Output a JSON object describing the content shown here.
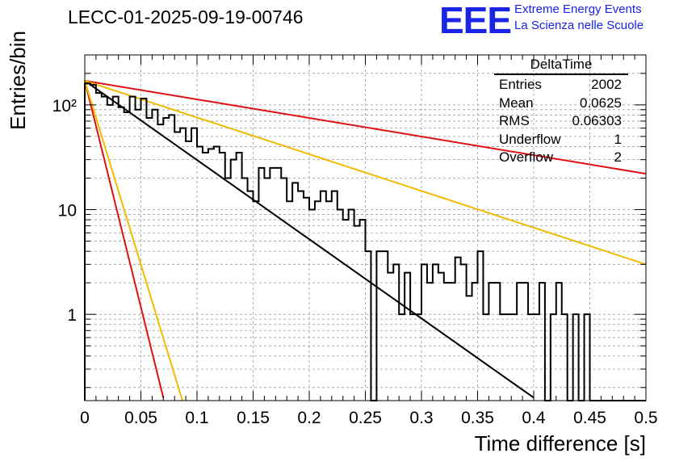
{
  "title": "LECC-01-2025-09-19-00746",
  "logo": {
    "mark": "EEE",
    "line1": "Extreme Energy Events",
    "line2": "La Scienza nelle Scuole",
    "color": "#1a24e6"
  },
  "stats": {
    "name": "DeltaTime",
    "rows": [
      {
        "label": "Entries",
        "value": "2002"
      },
      {
        "label": "Mean",
        "value": "0.0625"
      },
      {
        "label": "RMS",
        "value": "0.06303"
      },
      {
        "label": "Underflow",
        "value": "1"
      },
      {
        "label": "Overflow",
        "value": "2"
      }
    ]
  },
  "chart_data": {
    "type": "line",
    "title": "LECC-01-2025-09-19-00746",
    "xlabel": "Time difference [s]",
    "ylabel": "Entries/bin",
    "xlim": [
      0,
      0.5
    ],
    "ylim": [
      0.15,
      300
    ],
    "log_y": true,
    "grid": true,
    "x_ticks": [
      "0",
      "0.05",
      "0.1",
      "0.15",
      "0.2",
      "0.25",
      "0.3",
      "0.35",
      "0.4",
      "0.45",
      "0.5"
    ],
    "y_ticks": [
      {
        "value": 1,
        "label": "1"
      },
      {
        "value": 10,
        "label": "10"
      },
      {
        "value": 100,
        "label": "10²"
      }
    ],
    "histogram": {
      "name": "DeltaTime",
      "bin_width": 0.005,
      "color": "#000000",
      "counts": [
        160,
        155,
        130,
        120,
        100,
        120,
        95,
        85,
        120,
        90,
        115,
        75,
        90,
        65,
        75,
        80,
        55,
        60,
        45,
        60,
        40,
        35,
        38,
        40,
        35,
        20,
        30,
        35,
        20,
        15,
        12,
        25,
        20,
        25,
        25,
        20,
        12,
        18,
        15,
        13,
        10,
        12,
        15,
        12,
        15,
        10,
        8,
        10,
        7,
        8,
        4,
        0.1,
        4,
        4,
        2.5,
        3,
        1,
        2.5,
        1,
        1,
        3,
        2,
        3,
        2.5,
        2,
        2,
        3.5,
        3,
        1.5,
        2,
        4,
        1,
        2,
        2,
        1,
        1,
        1,
        2,
        2,
        1,
        1,
        2,
        0.1,
        1,
        2,
        1,
        0.1,
        1,
        0.1,
        1,
        0.1,
        0.1,
        0.1,
        0.1,
        0.1,
        0.1,
        0.1,
        0.1,
        0.1,
        0.1
      ]
    },
    "series": [
      {
        "color": "#000000",
        "points": [
          [
            0,
            170
          ],
          [
            0.4,
            0.16
          ]
        ]
      },
      {
        "color": "#dd1111",
        "points": [
          [
            0,
            170
          ],
          [
            0.5,
            22
          ]
        ]
      },
      {
        "color": "#f2bb00",
        "points": [
          [
            0,
            170
          ],
          [
            0.5,
            3
          ]
        ]
      },
      {
        "color": "#dd1111",
        "points": [
          [
            0,
            170
          ],
          [
            0.07,
            0.16
          ]
        ]
      },
      {
        "color": "#f2bb00",
        "points": [
          [
            0,
            170
          ],
          [
            0.087,
            0.15
          ]
        ]
      }
    ]
  }
}
